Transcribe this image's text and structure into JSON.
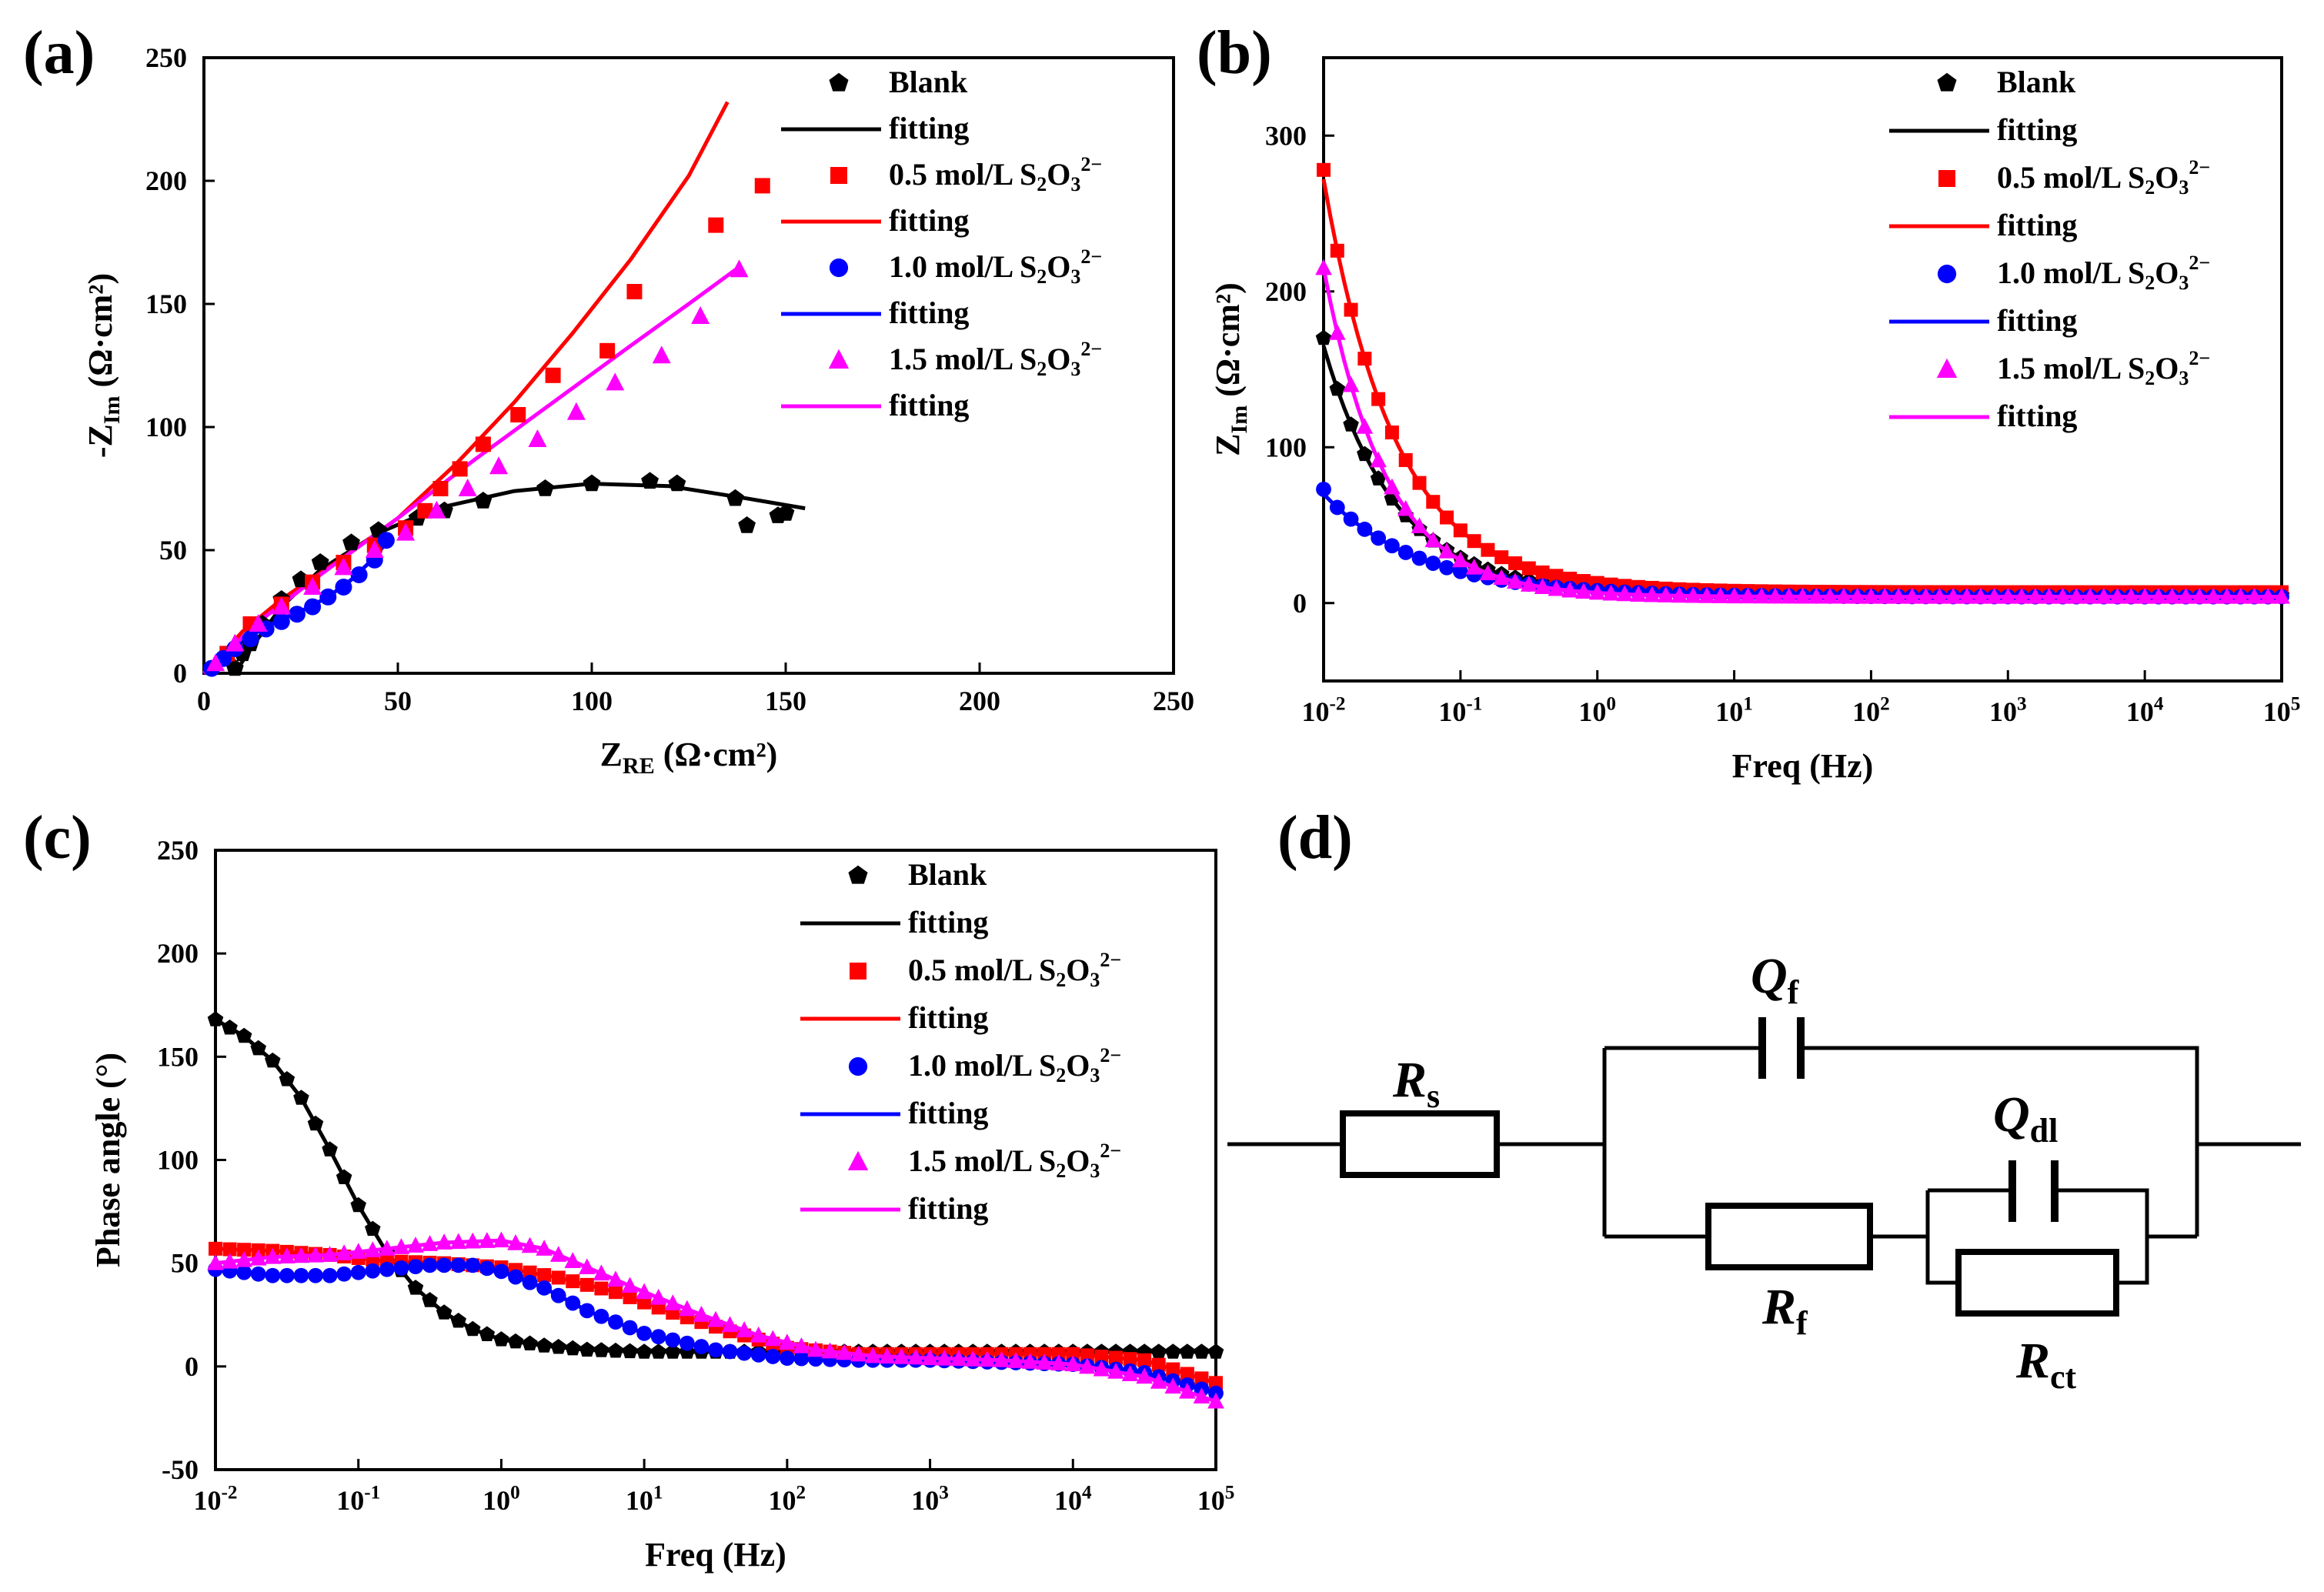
{
  "panel_labels": {
    "a": "(a)",
    "b": "(b)",
    "c": "(c)",
    "d": "(d)"
  },
  "colors": {
    "blank": "#000000",
    "c05": "#ff0000",
    "c10": "#0000ff",
    "c15": "#ff00ff"
  },
  "chart_data": [
    {
      "id": "a",
      "type": "scatter",
      "title": "",
      "xlabel": "Z",
      "xlabel_sub": "RE",
      "xlabel_unit": "(Ω·cm²)",
      "ylabel": "-Z",
      "ylabel_sub": "Im",
      "ylabel_unit": "(Ω·cm²)",
      "xlim": [
        0,
        250
      ],
      "ylim": [
        0,
        250
      ],
      "xticks": [
        0,
        50,
        100,
        150,
        200,
        250
      ],
      "yticks": [
        0,
        50,
        100,
        150,
        200,
        250
      ],
      "legend": [
        {
          "label": "Blank",
          "marker": "pentagon",
          "color": "#000000"
        },
        {
          "label": "fitting",
          "marker": "line",
          "color": "#000000"
        },
        {
          "label": "0.5 mol/L S",
          "sub": "2",
          "mid": "O",
          "sub2": "3",
          "sup": "2−",
          "marker": "square",
          "color": "#ff0000"
        },
        {
          "label": "fitting",
          "marker": "line",
          "color": "#ff0000"
        },
        {
          "label": "1.0 mol/L S",
          "sub": "2",
          "mid": "O",
          "sub2": "3",
          "sup": "2−",
          "marker": "circle",
          "color": "#0000ff"
        },
        {
          "label": "fitting",
          "marker": "line",
          "color": "#0000ff"
        },
        {
          "label": "1.5 mol/L S",
          "sub": "2",
          "mid": "O",
          "sub2": "3",
          "sup": "2−",
          "marker": "triangle",
          "color": "#ff00ff"
        },
        {
          "label": "fitting",
          "marker": "line",
          "color": "#ff00ff"
        }
      ],
      "series": [
        {
          "name": "Blank",
          "color": "#000000",
          "marker": "pentagon",
          "x": [
            8,
            10,
            12,
            15,
            20,
            25,
            30,
            38,
            45,
            55,
            62,
            72,
            88,
            100,
            115,
            122,
            137,
            140,
            148,
            150
          ],
          "y": [
            2,
            8,
            12,
            20,
            30,
            38,
            45,
            53,
            58,
            63,
            66,
            70,
            75,
            77,
            78,
            77,
            71,
            60,
            64,
            65
          ]
        },
        {
          "name": "fitting",
          "color": "#000000",
          "marker": "line",
          "x": [
            8,
            12,
            20,
            30,
            45,
            60,
            80,
            100,
            120,
            140,
            155
          ],
          "y": [
            0,
            10,
            27,
            42,
            57,
            67,
            74,
            77,
            76,
            71,
            67
          ]
        },
        {
          "name": "0.5 mol/L",
          "color": "#ff0000",
          "marker": "square",
          "x": [
            6,
            12,
            20,
            28,
            36,
            44,
            52,
            57,
            61,
            66,
            72,
            81,
            90,
            104,
            111,
            132,
            144
          ],
          "y": [
            8,
            20,
            28,
            37,
            45,
            52,
            59,
            66,
            75,
            83,
            93,
            105,
            121,
            131,
            155,
            182,
            198
          ]
        },
        {
          "name": "fitting",
          "color": "#ff0000",
          "marker": "line",
          "x": [
            0,
            10,
            20,
            35,
            50,
            65,
            80,
            95,
            110,
            125,
            135
          ],
          "y": [
            0,
            17,
            30,
            46,
            63,
            85,
            110,
            138,
            168,
            202,
            232
          ]
        },
        {
          "name": "1.0 mol/L",
          "color": "#0000ff",
          "marker": "circle",
          "x": [
            2,
            5,
            8,
            12,
            16,
            20,
            24,
            28,
            32,
            36,
            40,
            44,
            47
          ],
          "y": [
            2,
            6,
            10,
            14,
            18,
            21,
            24,
            27,
            31,
            35,
            40,
            46,
            54
          ]
        },
        {
          "name": "fitting",
          "color": "#0000ff",
          "marker": "line",
          "x": [
            0,
            5,
            10,
            15,
            20,
            26,
            32,
            38,
            44,
            48
          ],
          "y": [
            0,
            7,
            13,
            18,
            22,
            26,
            31,
            38,
            47,
            55
          ]
        },
        {
          "name": "1.5 mol/L",
          "color": "#ff00ff",
          "marker": "triangle",
          "x": [
            3,
            8,
            14,
            20,
            28,
            36,
            44,
            52,
            60,
            68,
            76,
            86,
            96,
            106,
            118,
            128,
            138
          ],
          "y": [
            4,
            12,
            20,
            27,
            35,
            43,
            50,
            57,
            66,
            75,
            84,
            95,
            106,
            118,
            129,
            145,
            164
          ]
        },
        {
          "name": "fitting",
          "color": "#ff00ff",
          "marker": "line",
          "x": [
            0,
            15,
            30,
            50,
            70,
            90,
            110,
            125,
            138
          ],
          "y": [
            0,
            22,
            40,
            63,
            87,
            110,
            133,
            150,
            165
          ]
        }
      ]
    },
    {
      "id": "b",
      "type": "scatter",
      "title": "",
      "xlabel": "Freq (Hz)",
      "ylabel": "Z",
      "ylabel_sub": "Im",
      "ylabel_unit": "(Ω·cm²)",
      "xscale": "log",
      "xlim": [
        -2,
        5
      ],
      "ylim": [
        -50,
        350
      ],
      "xticks": [
        -2,
        -1,
        0,
        1,
        2,
        3,
        4,
        5
      ],
      "yticks": [
        0,
        100,
        200,
        300
      ],
      "series": [
        {
          "name": "Blank",
          "color": "#000000",
          "marker": "pentagon",
          "k": 1.9,
          "y0": 165,
          "yinf": 5,
          "ystart": 170
        },
        {
          "name": "0.5 mol/L",
          "color": "#ff0000",
          "marker": "square",
          "k": 1.9,
          "y0": 272,
          "yinf": 7,
          "ystart": 278
        },
        {
          "name": "1.0 mol/L",
          "color": "#0000ff",
          "marker": "circle",
          "k": 1.4,
          "y0": 70,
          "yinf": 4,
          "ystart": 73
        },
        {
          "name": "1.5 mol/L",
          "color": "#ff00ff",
          "marker": "triangle",
          "k": 2.2,
          "y0": 215,
          "yinf": 4,
          "ystart": 215
        }
      ]
    },
    {
      "id": "c",
      "type": "scatter",
      "title": "",
      "xlabel": "Freq (Hz)",
      "ylabel": "Phase angle (°)",
      "xscale": "log",
      "xlim": [
        -2,
        5
      ],
      "ylim": [
        -50,
        250
      ],
      "xticks": [
        -2,
        -1,
        0,
        1,
        2,
        3,
        4,
        5
      ],
      "yticks": [
        -50,
        0,
        50,
        100,
        150,
        200,
        250
      ],
      "series": [
        {
          "name": "Blank",
          "color": "#000000",
          "marker": "pentagon",
          "lx": [
            -2,
            -1.8,
            -1.6,
            -1.4,
            -1.2,
            -1.0,
            -0.8,
            -0.6,
            -0.4,
            -0.2,
            0,
            0.3,
            0.6,
            1,
            2,
            3,
            4,
            5
          ],
          "y": [
            168,
            160,
            148,
            130,
            105,
            78,
            55,
            38,
            26,
            18,
            13,
            10,
            8,
            7,
            7,
            7,
            7,
            7
          ]
        },
        {
          "name": "0.5 mol/L",
          "color": "#ff0000",
          "marker": "square",
          "lx": [
            -2,
            -1.6,
            -1.2,
            -0.8,
            -0.4,
            0,
            0.4,
            0.8,
            1.2,
            1.6,
            2,
            2.5,
            3,
            3.5,
            4,
            4.5,
            5
          ],
          "y": [
            57,
            56,
            54,
            51,
            50,
            48,
            43,
            36,
            26,
            17,
            9,
            6,
            6,
            6,
            6,
            3,
            -8
          ]
        },
        {
          "name": "1.0 mol/L",
          "color": "#0000ff",
          "marker": "circle",
          "lx": [
            -2,
            -1.6,
            -1.2,
            -0.8,
            -0.5,
            -0.2,
            0,
            0.3,
            0.6,
            1,
            1.5,
            2,
            2.5,
            3,
            3.5,
            4,
            4.5,
            5
          ],
          "y": [
            47,
            44,
            44,
            47,
            49,
            49,
            46,
            38,
            27,
            16,
            8,
            4,
            3,
            3,
            2,
            1,
            -3,
            -13
          ]
        },
        {
          "name": "1.5 mol/L",
          "color": "#ff00ff",
          "marker": "triangle",
          "lx": [
            -2,
            -1.6,
            -1.2,
            -0.8,
            -0.4,
            0,
            0.3,
            0.6,
            1,
            1.4,
            1.8,
            2.2,
            2.6,
            3,
            3.5,
            4,
            4.5,
            5
          ],
          "y": [
            50,
            53,
            54,
            57,
            60,
            61,
            57,
            48,
            36,
            25,
            15,
            8,
            5,
            4,
            3,
            1,
            -5,
            -17
          ]
        }
      ]
    }
  ],
  "circuit": {
    "rs": "R",
    "rs_sub": "s",
    "qf": "Q",
    "qf_sub": "f",
    "rf": "R",
    "rf_sub": "f",
    "qdl": "Q",
    "qdl_sub": "dl",
    "rct": "R",
    "rct_sub": "ct"
  }
}
